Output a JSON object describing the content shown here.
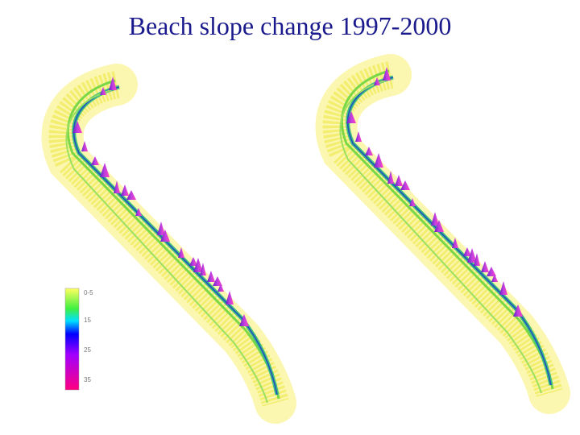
{
  "header": {
    "title": "Beach slope change 1997-2000"
  },
  "legend": {
    "labels": [
      "0-5",
      "15",
      "25",
      "35"
    ]
  }
}
